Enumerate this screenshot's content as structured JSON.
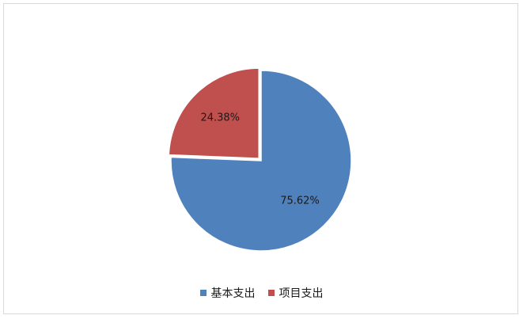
{
  "chart_data": {
    "type": "pie",
    "title": "",
    "categories": [
      "基本支出",
      "项目支出"
    ],
    "values": [
      75.62,
      24.38
    ],
    "data_labels": [
      "75.62%",
      "24.38%"
    ],
    "colors": [
      "#4F81BD",
      "#C0504D"
    ],
    "legend_position": "bottom",
    "start_angle_deg": 0,
    "direction": "clockwise",
    "exploded_slice": "项目支出"
  }
}
